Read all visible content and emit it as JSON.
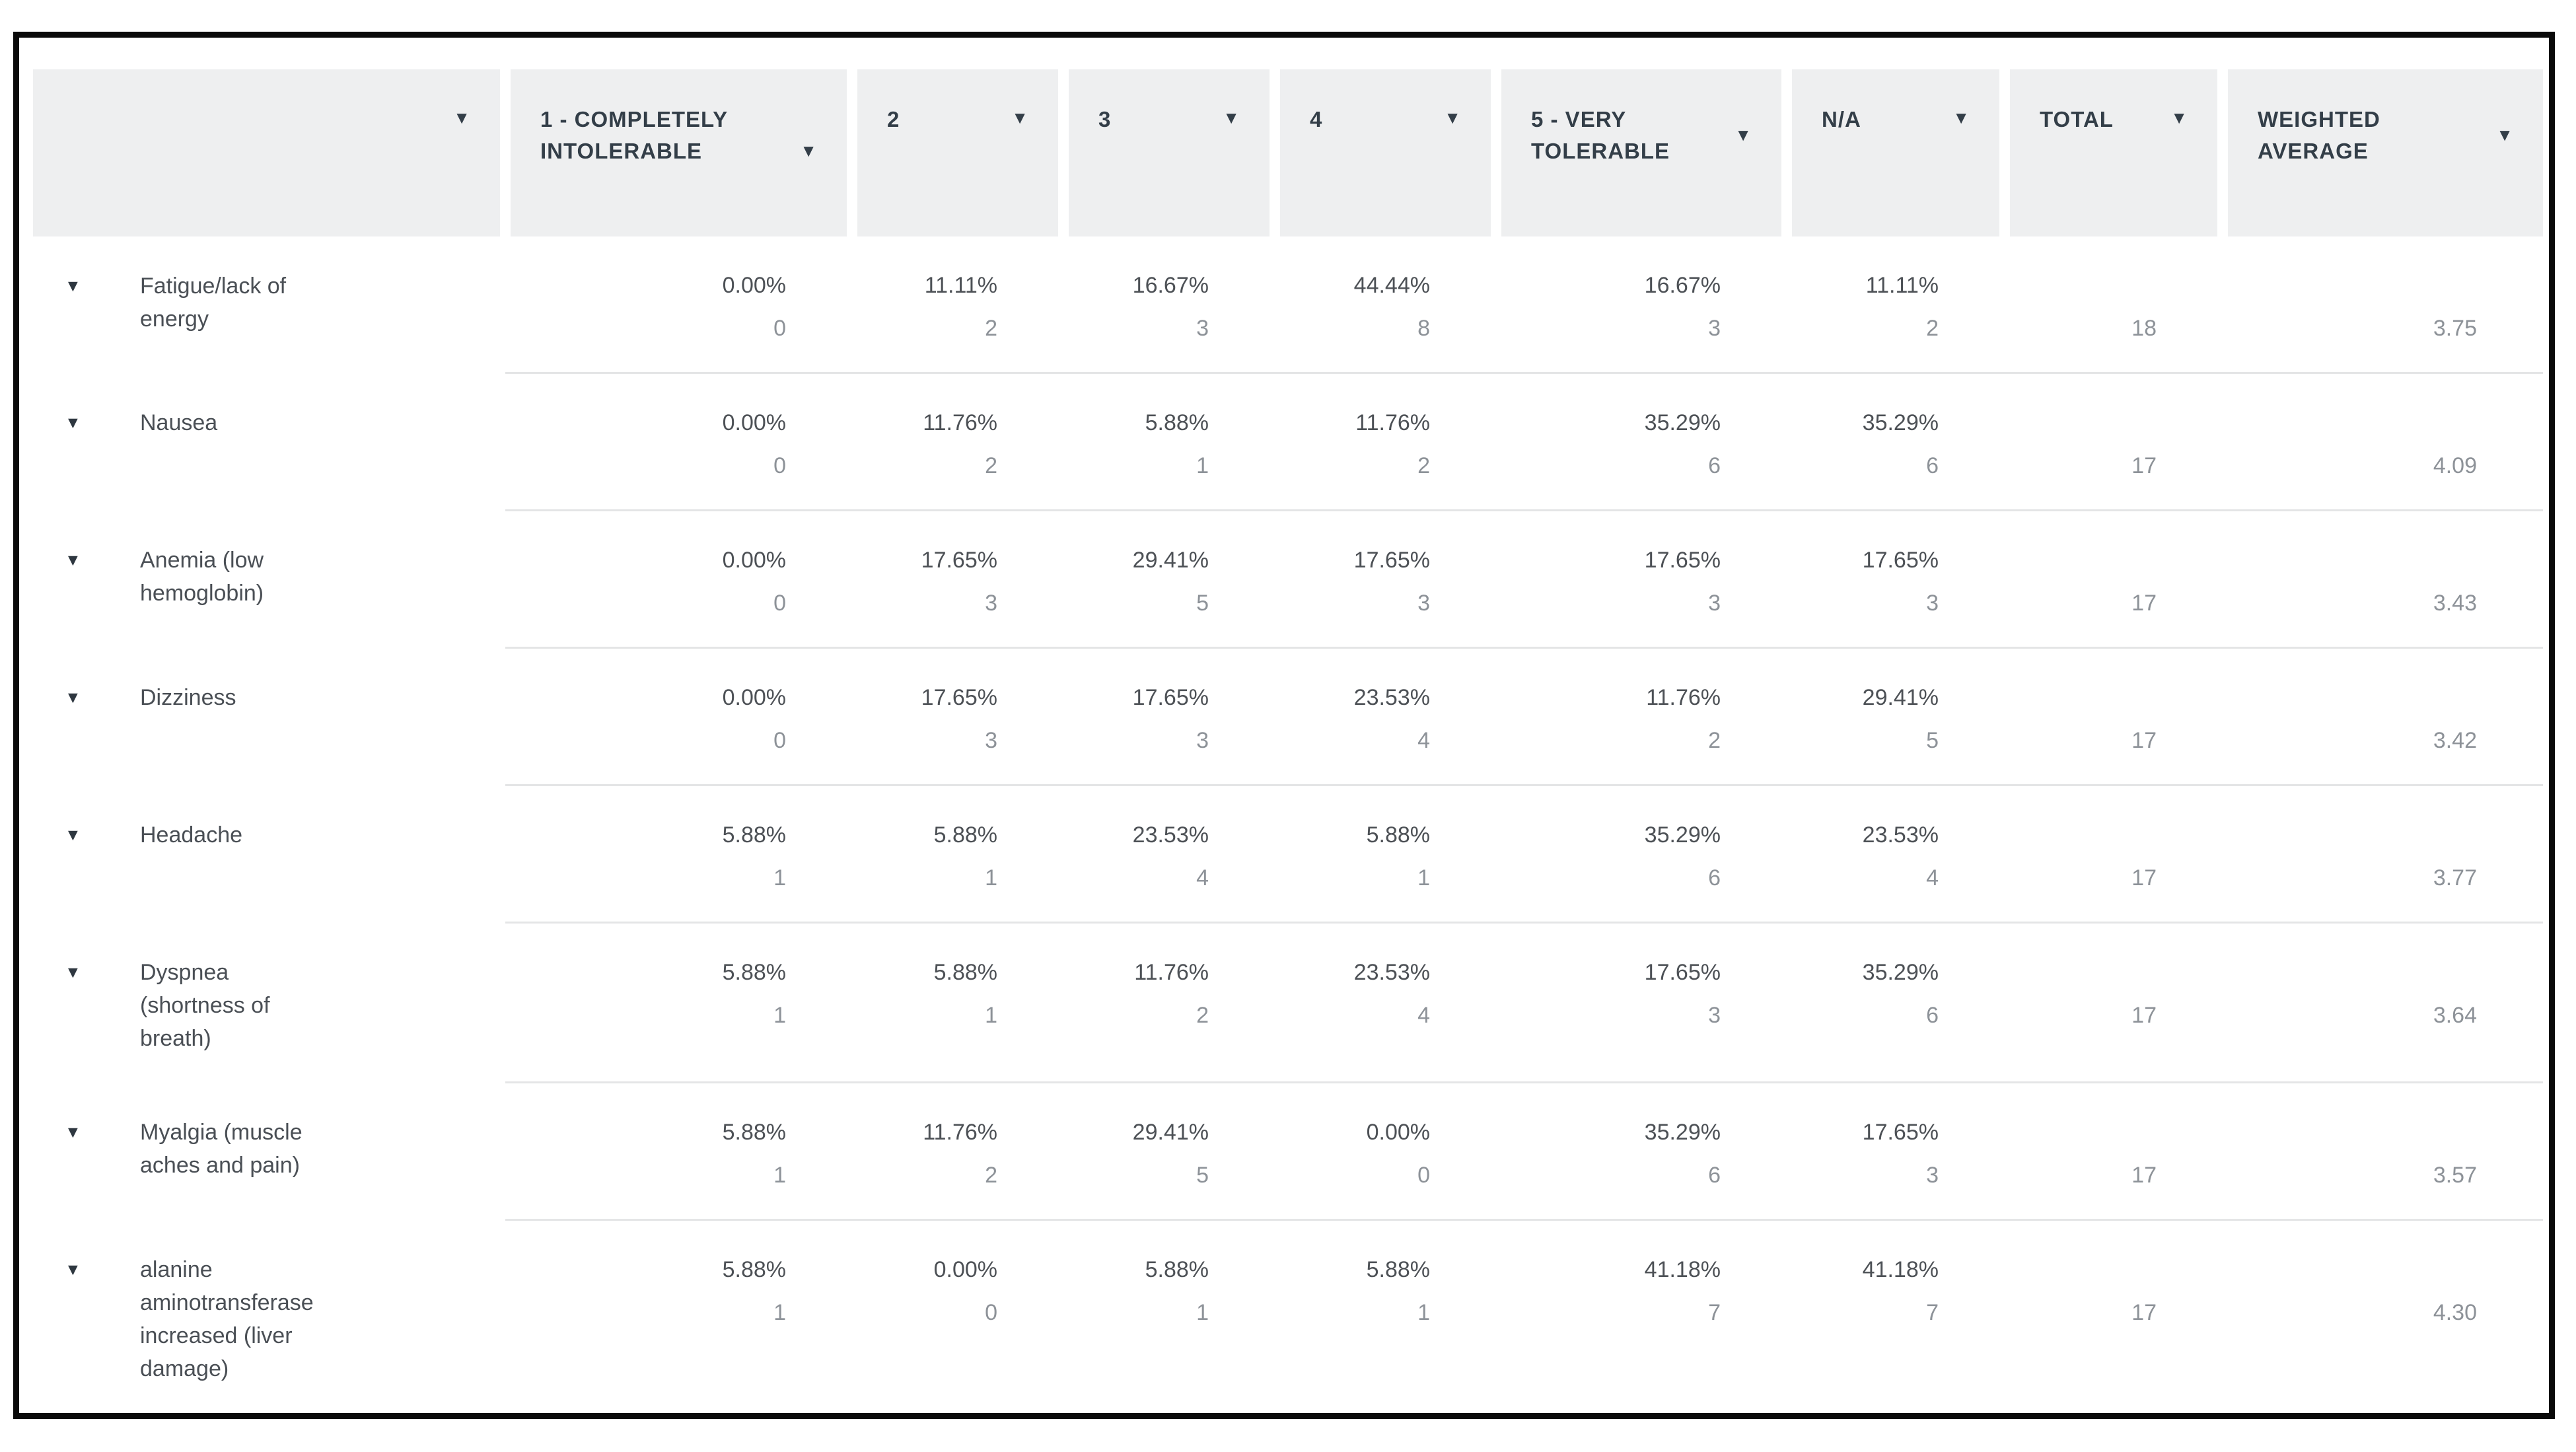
{
  "icons": {
    "sort": "▼",
    "collapse": "▼"
  },
  "columns": [
    "",
    "1 - COMPLETELY INTOLERABLE",
    "2",
    "3",
    "4",
    "5 - VERY TOLERABLE",
    "N/A",
    "TOTAL",
    "WEIGHTED AVERAGE"
  ],
  "rows": [
    {
      "label": "Fatigue/lack of energy",
      "cells": [
        {
          "p": "0.00%",
          "n": "0"
        },
        {
          "p": "11.11%",
          "n": "2"
        },
        {
          "p": "16.67%",
          "n": "3"
        },
        {
          "p": "44.44%",
          "n": "8"
        },
        {
          "p": "16.67%",
          "n": "3"
        },
        {
          "p": "11.11%",
          "n": "2"
        }
      ],
      "total": "18",
      "avg": "3.75"
    },
    {
      "label": "Nausea",
      "cells": [
        {
          "p": "0.00%",
          "n": "0"
        },
        {
          "p": "11.76%",
          "n": "2"
        },
        {
          "p": "5.88%",
          "n": "1"
        },
        {
          "p": "11.76%",
          "n": "2"
        },
        {
          "p": "35.29%",
          "n": "6"
        },
        {
          "p": "35.29%",
          "n": "6"
        }
      ],
      "total": "17",
      "avg": "4.09"
    },
    {
      "label": "Anemia (low hemoglobin)",
      "cells": [
        {
          "p": "0.00%",
          "n": "0"
        },
        {
          "p": "17.65%",
          "n": "3"
        },
        {
          "p": "29.41%",
          "n": "5"
        },
        {
          "p": "17.65%",
          "n": "3"
        },
        {
          "p": "17.65%",
          "n": "3"
        },
        {
          "p": "17.65%",
          "n": "3"
        }
      ],
      "total": "17",
      "avg": "3.43"
    },
    {
      "label": "Dizziness",
      "cells": [
        {
          "p": "0.00%",
          "n": "0"
        },
        {
          "p": "17.65%",
          "n": "3"
        },
        {
          "p": "17.65%",
          "n": "3"
        },
        {
          "p": "23.53%",
          "n": "4"
        },
        {
          "p": "11.76%",
          "n": "2"
        },
        {
          "p": "29.41%",
          "n": "5"
        }
      ],
      "total": "17",
      "avg": "3.42"
    },
    {
      "label": "Headache",
      "cells": [
        {
          "p": "5.88%",
          "n": "1"
        },
        {
          "p": "5.88%",
          "n": "1"
        },
        {
          "p": "23.53%",
          "n": "4"
        },
        {
          "p": "5.88%",
          "n": "1"
        },
        {
          "p": "35.29%",
          "n": "6"
        },
        {
          "p": "23.53%",
          "n": "4"
        }
      ],
      "total": "17",
      "avg": "3.77"
    },
    {
      "label": "Dyspnea (shortness of breath)",
      "cells": [
        {
          "p": "5.88%",
          "n": "1"
        },
        {
          "p": "5.88%",
          "n": "1"
        },
        {
          "p": "11.76%",
          "n": "2"
        },
        {
          "p": "23.53%",
          "n": "4"
        },
        {
          "p": "17.65%",
          "n": "3"
        },
        {
          "p": "35.29%",
          "n": "6"
        }
      ],
      "total": "17",
      "avg": "3.64"
    },
    {
      "label": "Myalgia (muscle aches and pain)",
      "cells": [
        {
          "p": "5.88%",
          "n": "1"
        },
        {
          "p": "11.76%",
          "n": "2"
        },
        {
          "p": "29.41%",
          "n": "5"
        },
        {
          "p": "0.00%",
          "n": "0"
        },
        {
          "p": "35.29%",
          "n": "6"
        },
        {
          "p": "17.65%",
          "n": "3"
        }
      ],
      "total": "17",
      "avg": "3.57"
    },
    {
      "label": "alanine aminotransferase increased (liver damage)",
      "cells": [
        {
          "p": "5.88%",
          "n": "1"
        },
        {
          "p": "0.00%",
          "n": "0"
        },
        {
          "p": "5.88%",
          "n": "1"
        },
        {
          "p": "5.88%",
          "n": "1"
        },
        {
          "p": "41.18%",
          "n": "7"
        },
        {
          "p": "41.18%",
          "n": "7"
        }
      ],
      "total": "17",
      "avg": "4.30"
    }
  ],
  "colors": {
    "header_bg": "#eeeff0",
    "header_text": "#333e48",
    "row_label": "#4a4f55",
    "percent": "#4d5156",
    "count": "#8d9298",
    "separator": "#e4e5e6",
    "frame_border": "#0a0a0a"
  }
}
